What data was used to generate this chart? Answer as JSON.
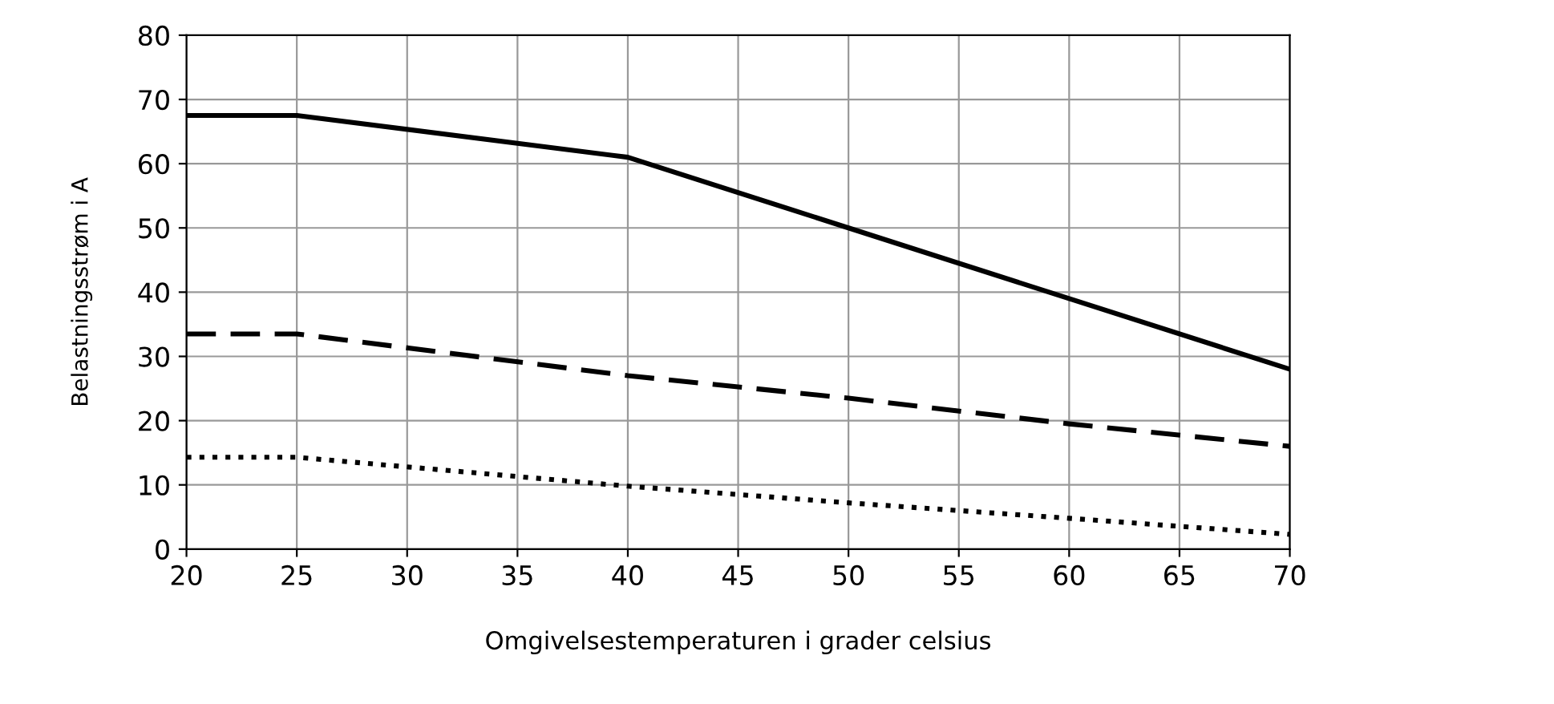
{
  "chart_data": {
    "type": "line",
    "xlabel": "Omgivelsestemperaturen i grader celsius",
    "ylabel": "Belastningsstrøm i A",
    "xlim": [
      20,
      70
    ],
    "xticks": [
      20,
      25,
      30,
      35,
      40,
      45,
      50,
      55,
      60,
      65,
      70
    ],
    "ylim": [
      0,
      80
    ],
    "yticks": [
      0,
      10,
      20,
      30,
      40,
      50,
      60,
      70,
      80
    ],
    "grid": true,
    "series": [
      {
        "color": "#000000",
        "line_style": "solid",
        "x": [
          20,
          25,
          40,
          50,
          60,
          70
        ],
        "values": [
          67.5,
          67.5,
          61,
          50,
          39,
          28
        ]
      },
      {
        "color": "#000000",
        "line_style": "dashed",
        "x": [
          20,
          25,
          40,
          50,
          60,
          70
        ],
        "values": [
          33.5,
          33.5,
          27,
          23.5,
          19.5,
          16
        ]
      },
      {
        "color": "#000000",
        "line_style": "dotted",
        "x": [
          20,
          25,
          40,
          50,
          60,
          70
        ],
        "values": [
          14.3,
          14.3,
          9.8,
          7.2,
          4.8,
          2.3
        ]
      }
    ]
  }
}
